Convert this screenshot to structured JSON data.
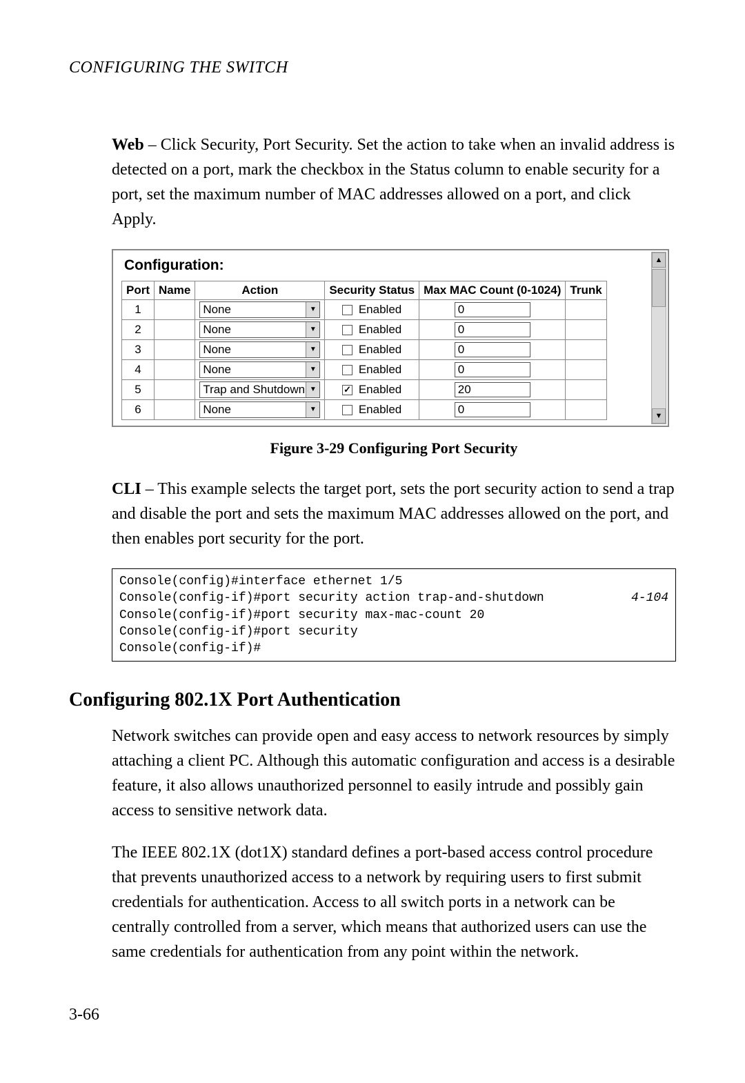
{
  "header": "CONFIGURING THE SWITCH",
  "web_para": {
    "lead": "Web",
    "rest": " – Click Security, Port Security. Set the action to take when an invalid address is detected on a port, mark the checkbox in the Status column to enable security for a port, set the maximum number of MAC addresses allowed on a port, and click Apply."
  },
  "config": {
    "title": "Configuration:",
    "columns": [
      "Port",
      "Name",
      "Action",
      "Security Status",
      "Max MAC Count (0-1024)",
      "Trunk"
    ],
    "status_label": "Enabled",
    "rows": [
      {
        "port": "1",
        "name": "",
        "action": "None",
        "checked": false,
        "max": "0",
        "trunk": ""
      },
      {
        "port": "2",
        "name": "",
        "action": "None",
        "checked": false,
        "max": "0",
        "trunk": ""
      },
      {
        "port": "3",
        "name": "",
        "action": "None",
        "checked": false,
        "max": "0",
        "trunk": ""
      },
      {
        "port": "4",
        "name": "",
        "action": "None",
        "checked": false,
        "max": "0",
        "trunk": ""
      },
      {
        "port": "5",
        "name": "",
        "action": "Trap and Shutdown",
        "checked": true,
        "max": "20",
        "trunk": ""
      },
      {
        "port": "6",
        "name": "",
        "action": "None",
        "checked": false,
        "max": "0",
        "trunk": ""
      }
    ]
  },
  "figure_caption": "Figure 3-29   Configuring Port Security",
  "cli_para": {
    "lead": "CLI",
    "rest": " – This example selects the target port, sets the port security action to send a trap and disable the port and sets the maximum MAC addresses allowed on the port, and then enables port security for the port."
  },
  "cli_lines": [
    {
      "text": "Console(config)#interface ethernet 1/5",
      "ref": ""
    },
    {
      "text": "Console(config-if)#port security action trap-and-shutdown",
      "ref": "4-104"
    },
    {
      "text": "Console(config-if)#port security max-mac-count 20",
      "ref": ""
    },
    {
      "text": "Console(config-if)#port security",
      "ref": ""
    },
    {
      "text": "Console(config-if)#",
      "ref": ""
    }
  ],
  "section_heading": "Configuring 802.1X Port Authentication",
  "para1": "Network switches can provide open and easy access to network resources by simply attaching a client PC. Although this automatic configuration and access is a desirable feature, it also allows unauthorized personnel to easily intrude and possibly gain access to sensitive network data.",
  "para2": "The IEEE 802.1X (dot1X) standard defines a port-based access control procedure that prevents unauthorized access to a network by requiring users to first submit credentials for authentication. Access to all switch ports in a network can be centrally controlled from a server, which means that authorized users can use the same credentials for authentication from any point within the network.",
  "page_number": "3-66"
}
